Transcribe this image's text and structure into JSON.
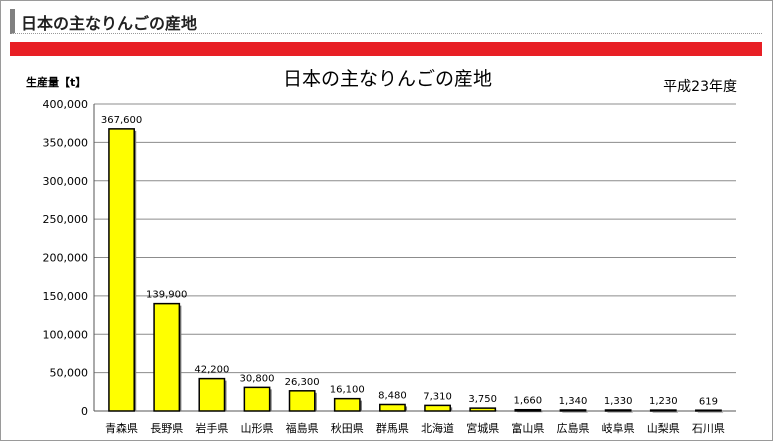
{
  "page": {
    "heading": "日本の主なりんごの産地"
  },
  "chart_data": {
    "type": "bar",
    "title": "日本の主なりんごの産地",
    "ylabel": "生産量【t】",
    "period": "平成23年度",
    "categories": [
      "青森県",
      "長野県",
      "岩手県",
      "山形県",
      "福島県",
      "秋田県",
      "群馬県",
      "北海道",
      "宮城県",
      "富山県",
      "広島県",
      "岐阜県",
      "山梨県",
      "石川県"
    ],
    "values": [
      367600,
      139900,
      42200,
      30800,
      26300,
      16100,
      8480,
      7310,
      3750,
      1660,
      1340,
      1330,
      1230,
      619
    ],
    "value_labels": [
      "367,600",
      "139,900",
      "42,200",
      "30,800",
      "26,300",
      "16,100",
      "8,480",
      "7,310",
      "3,750",
      "1,660",
      "1,340",
      "1,330",
      "1,230",
      "619"
    ],
    "yticks": [
      0,
      50000,
      100000,
      150000,
      200000,
      250000,
      300000,
      350000,
      400000
    ],
    "ytick_labels": [
      "0",
      "50,000",
      "100,000",
      "150,000",
      "200,000",
      "250,000",
      "300,000",
      "350,000",
      "400,000"
    ],
    "ylim": [
      0,
      400000
    ],
    "grid": true,
    "bar_color": "#ffff00",
    "bar_edge_color": "#000000",
    "accent_color": "#e81f25"
  }
}
